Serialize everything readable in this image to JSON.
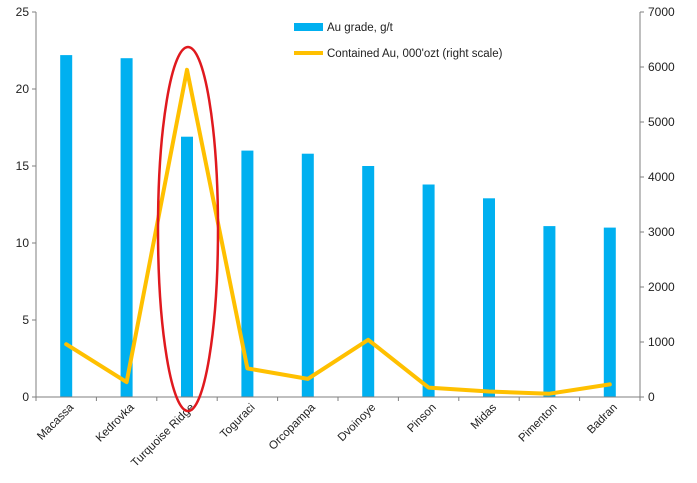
{
  "chart_data": {
    "type": "bar",
    "categories": [
      "Macassa",
      "Kedrovka",
      "Turquoise Ridge",
      "Toguraci",
      "Orcopampa",
      "Dvoinoye",
      "Pinson",
      "Midas",
      "Pimenton",
      "Badran"
    ],
    "series": [
      {
        "name": "Au grade, g/t",
        "type": "bar",
        "axis": "left",
        "color": "#00B0F0",
        "values": [
          22.2,
          22.0,
          16.9,
          16.0,
          15.8,
          15.0,
          13.8,
          12.9,
          11.1,
          11.0
        ]
      },
      {
        "name": "Contained Au, 000'ozt (right scale)",
        "type": "line",
        "axis": "right",
        "color": "#FFC000",
        "values": [
          960,
          270,
          5950,
          520,
          330,
          1040,
          170,
          100,
          60,
          230
        ]
      }
    ],
    "y_left": {
      "min": 0,
      "max": 25,
      "ticks": [
        0,
        5,
        10,
        15,
        20,
        25
      ]
    },
    "y_right": {
      "min": 0,
      "max": 7000,
      "ticks": [
        0,
        1000,
        2000,
        3000,
        4000,
        5000,
        6000,
        7000
      ]
    },
    "legend": {
      "position": "top-center",
      "items": [
        "Au grade, g/t",
        "Contained Au, 000'ozt (right scale)"
      ]
    },
    "highlight": {
      "category": "Turquoise Ridge",
      "shape": "ellipse",
      "color": "#E0191E"
    },
    "grid": false,
    "title": "",
    "xlabel": "",
    "ylabel": ""
  }
}
